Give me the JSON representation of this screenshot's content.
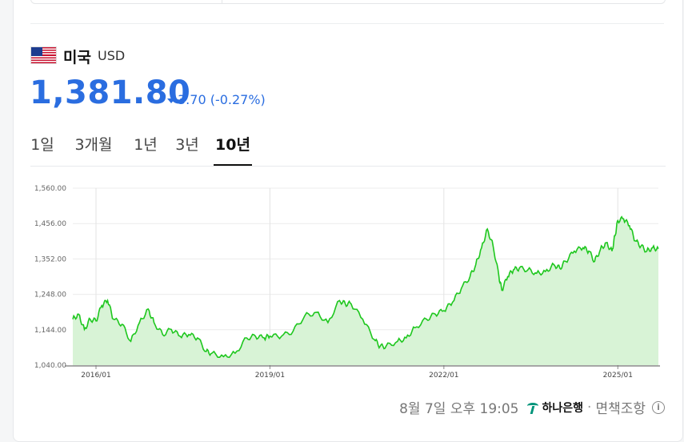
{
  "currency": {
    "country": "미국",
    "code": "USD",
    "price": "1,381.80",
    "change": "3.70 (-0.27%)",
    "direction": "down"
  },
  "tabs": [
    {
      "label": "1일",
      "active": false
    },
    {
      "label": "3개월",
      "active": false
    },
    {
      "label": "1년",
      "active": false
    },
    {
      "label": "3년",
      "active": false
    },
    {
      "label": "10년",
      "active": true
    }
  ],
  "footer": {
    "timestamp": "8월 7일 오후 19:05",
    "provider": "하나은행",
    "disclaimer": "면책조항"
  },
  "colors": {
    "accent": "#2a6de0",
    "line": "#1ec71e",
    "area": "#d8f3d6"
  },
  "chart_data": {
    "type": "area",
    "ylim": [
      1040,
      1560
    ],
    "yticks": [
      "1,560.00",
      "1,456.00",
      "1,352.00",
      "1,248.00",
      "1,144.00",
      "1,040.00"
    ],
    "ytick_values": [
      1560,
      1456,
      1352,
      1248,
      1144,
      1040
    ],
    "xticks": [
      "2016/01",
      "2019/01",
      "2022/01",
      "2025/01"
    ],
    "xtick_values": [
      2016.0,
      2019.0,
      2022.0,
      2025.0
    ],
    "xlim": [
      2015.6,
      2025.7
    ],
    "grid": true,
    "x": [
      2015.6,
      2015.7,
      2015.8,
      2015.9,
      2016.0,
      2016.1,
      2016.2,
      2016.3,
      2016.45,
      2016.6,
      2016.75,
      2016.9,
      2017.0,
      2017.15,
      2017.3,
      2017.45,
      2017.6,
      2017.75,
      2017.9,
      2018.0,
      2018.2,
      2018.4,
      2018.6,
      2018.75,
      2018.9,
      2019.0,
      2019.2,
      2019.4,
      2019.6,
      2019.8,
      2020.0,
      2020.2,
      2020.3,
      2020.4,
      2020.6,
      2020.8,
      2020.9,
      2021.0,
      2021.2,
      2021.35,
      2021.5,
      2021.7,
      2021.85,
      2022.0,
      2022.15,
      2022.3,
      2022.45,
      2022.55,
      2022.65,
      2022.75,
      2022.85,
      2022.95,
      2023.0,
      2023.1,
      2023.2,
      2023.3,
      2023.45,
      2023.6,
      2023.75,
      2023.9,
      2024.0,
      2024.1,
      2024.25,
      2024.4,
      2024.5,
      2024.6,
      2024.7,
      2024.8,
      2024.9,
      2024.95,
      2025.0,
      2025.1,
      2025.2,
      2025.3,
      2025.4,
      2025.5,
      2025.6,
      2025.7
    ],
    "y": [
      1175,
      1190,
      1145,
      1175,
      1170,
      1215,
      1230,
      1175,
      1160,
      1110,
      1165,
      1205,
      1165,
      1130,
      1145,
      1125,
      1130,
      1120,
      1080,
      1075,
      1065,
      1075,
      1120,
      1125,
      1120,
      1125,
      1125,
      1140,
      1185,
      1195,
      1165,
      1230,
      1220,
      1220,
      1175,
      1115,
      1095,
      1095,
      1110,
      1120,
      1150,
      1175,
      1190,
      1200,
      1225,
      1265,
      1300,
      1335,
      1385,
      1440,
      1390,
      1300,
      1260,
      1300,
      1320,
      1325,
      1320,
      1310,
      1315,
      1335,
      1325,
      1345,
      1375,
      1385,
      1375,
      1345,
      1380,
      1400,
      1375,
      1420,
      1465,
      1470,
      1450,
      1405,
      1390,
      1375,
      1385,
      1382
    ]
  }
}
